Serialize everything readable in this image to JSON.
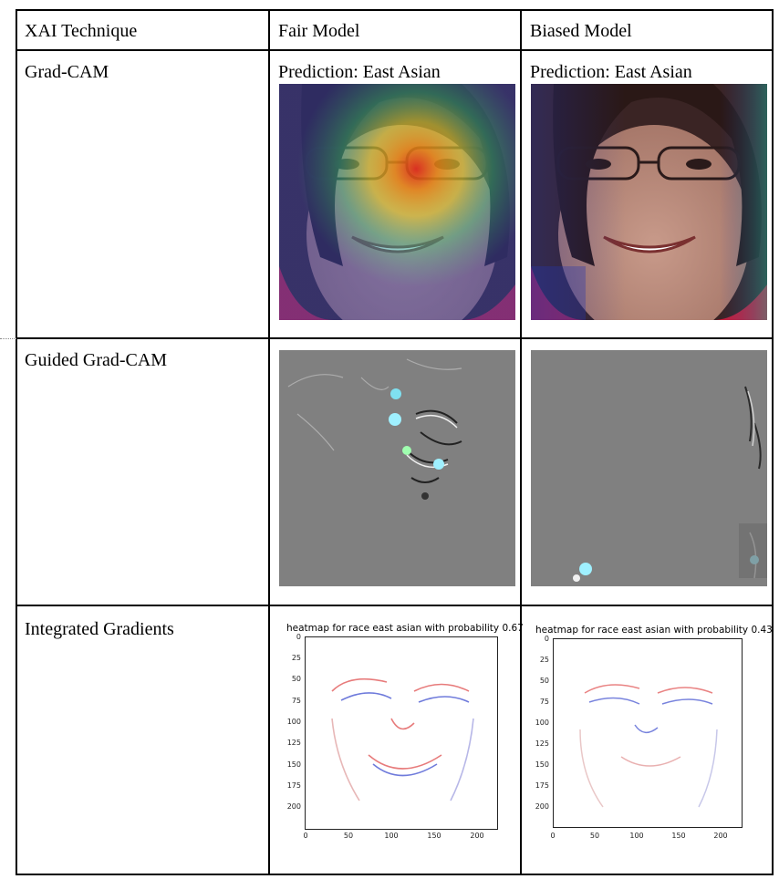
{
  "table": {
    "headers": [
      "XAI Technique",
      "Fair Model",
      "Biased Model"
    ],
    "rows": [
      {
        "technique": "Grad-CAM",
        "fair_caption": "Prediction: East Asian",
        "biased_caption": "Prediction: East Asian"
      },
      {
        "technique": "Guided Grad-CAM"
      },
      {
        "technique": "Integrated Gradients",
        "fair_plot": {
          "title": "heatmap for race east asian with probability 0.67",
          "yticks": [
            "0",
            "25",
            "50",
            "75",
            "100",
            "125",
            "150",
            "175",
            "200"
          ],
          "xticks": [
            "0",
            "50",
            "100",
            "150",
            "200"
          ]
        },
        "biased_plot": {
          "title": "heatmap for race east asian with probability 0.43",
          "yticks": [
            "0",
            "25",
            "50",
            "75",
            "100",
            "125",
            "150",
            "175",
            "200"
          ],
          "xticks": [
            "0",
            "50",
            "100",
            "150",
            "200"
          ]
        }
      }
    ]
  },
  "colors": {
    "grid": "#000000",
    "guided_background": "#808080",
    "heat_positive": "#e03030",
    "heat_negative": "#3040d0"
  }
}
